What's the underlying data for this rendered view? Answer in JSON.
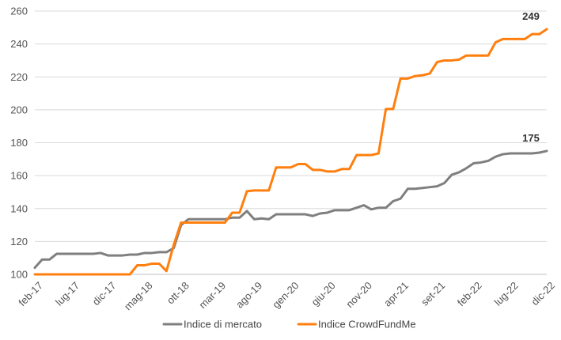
{
  "chart_data": {
    "type": "line",
    "title": "",
    "xlabel": "",
    "ylabel": "",
    "ylim": [
      100,
      260
    ],
    "y_ticks": [
      100,
      120,
      140,
      160,
      180,
      200,
      220,
      240,
      260
    ],
    "x_tick_labels": [
      "feb-17",
      "lug-17",
      "dic-17",
      "mag-18",
      "ott-18",
      "mar-19",
      "ago-19",
      "gen-20",
      "giu-20",
      "nov-20",
      "apr-21",
      "set-21",
      "feb-22",
      "lug-22",
      "dic-22"
    ],
    "grid": "horizontal",
    "legend_position": "bottom",
    "x_count": 71,
    "series": [
      {
        "name": "Indice di mercato",
        "color": "#7f7f7f",
        "end_label": "175",
        "values": [
          104,
          109,
          109,
          112.5,
          112.5,
          112.5,
          112.5,
          112.5,
          112.5,
          113,
          111.5,
          111.5,
          111.5,
          112,
          112,
          113,
          113,
          113.5,
          113.5,
          116,
          130,
          133.5,
          133.5,
          133.5,
          133.5,
          133.5,
          133.5,
          134.5,
          134.5,
          138.5,
          133.5,
          134,
          133.5,
          136.5,
          136.5,
          136.5,
          136.5,
          136.5,
          135.5,
          137,
          137.5,
          139,
          139,
          139,
          140.5,
          142,
          139.5,
          140.5,
          140.5,
          144.5,
          146,
          152,
          152,
          152.5,
          153,
          153.5,
          155.5,
          160.5,
          162,
          164.5,
          167.5,
          168,
          169,
          171.5,
          173,
          173.5,
          173.5,
          173.5,
          173.5,
          174,
          175
        ]
      },
      {
        "name": "Indice CrowdFundMe",
        "color": "#ff7f0e",
        "end_label": "249",
        "values": [
          100,
          100,
          100,
          100,
          100,
          100,
          100,
          100,
          100,
          100,
          100,
          100,
          100,
          100,
          105.5,
          105.5,
          106.5,
          106.5,
          102,
          118,
          131.5,
          131.5,
          131.5,
          131.5,
          131.5,
          131.5,
          131.5,
          137.5,
          137.5,
          150.5,
          151,
          151,
          151,
          165,
          165,
          165,
          167,
          167,
          163.5,
          163.5,
          162.5,
          162.5,
          164,
          164,
          172.5,
          172.5,
          172.5,
          173.5,
          200.5,
          200.5,
          219,
          219,
          220.5,
          221,
          222,
          229,
          230,
          230,
          230.5,
          233,
          233,
          233,
          233,
          241,
          243,
          243,
          243,
          243,
          246,
          246,
          249
        ]
      }
    ]
  }
}
